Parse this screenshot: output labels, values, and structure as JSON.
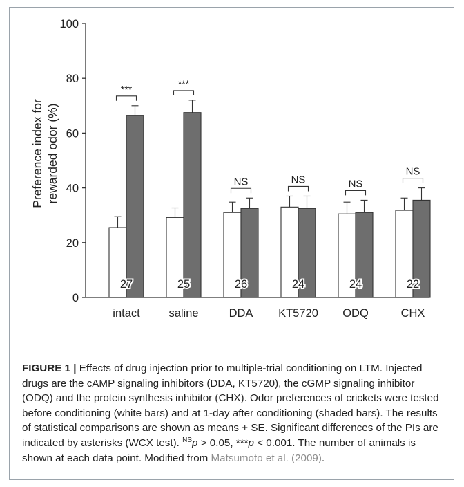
{
  "chart_data": {
    "type": "bar",
    "title": "",
    "xlabel": "",
    "ylabel_lines": [
      "Preference index for",
      "rewarded odor (%)"
    ],
    "ylim": [
      0,
      100
    ],
    "yticks": [
      0,
      20,
      40,
      60,
      80,
      100
    ],
    "categories": [
      "intact",
      "saline",
      "DDA",
      "KT5720",
      "ODQ",
      "CHX"
    ],
    "series": [
      {
        "values": [
          25.5,
          29.2,
          31.0,
          33.0,
          30.5,
          31.8
        ],
        "errors": [
          4.0,
          3.5,
          3.8,
          4.0,
          4.3,
          4.5
        ],
        "fill": "#ffffff"
      },
      {
        "values": [
          66.5,
          67.5,
          32.5,
          32.5,
          31.0,
          35.5
        ],
        "errors": [
          3.5,
          4.5,
          3.8,
          4.5,
          4.5,
          4.5
        ],
        "fill": "#6e6e6e"
      }
    ],
    "n_labels": [
      "27",
      "25",
      "26",
      "24",
      "24",
      "22"
    ],
    "significance": [
      "***",
      "***",
      "NS",
      "NS",
      "NS",
      "NS"
    ],
    "grid": false,
    "legend": "none"
  },
  "caption": {
    "label": "FIGURE 1 |",
    "part1": " Effects of drug injection prior to multiple-trial conditioning on LTM. Injected drugs are the cAMP signaling inhibitors (DDA, KT5720), the cGMP signaling inhibitor (ODQ) and the protein synthesis inhibitor (CHX). Odor preferences of crickets were tested before conditioning (white bars) and at 1-day after conditioning (shaded bars). The results of statistical comparisons are shown as means + SE. Significant differences of the PIs are indicated by asterisks (WCX test). ",
    "ns_sup": "NS",
    "p1": "p",
    "rel1": " > 0.05, ",
    "stars": "***",
    "p2": "p",
    "rel2": " < 0.001. The number of animals is shown at each data point. Modified from ",
    "citation": "Matsumoto et al. (2009)",
    "end": "."
  }
}
